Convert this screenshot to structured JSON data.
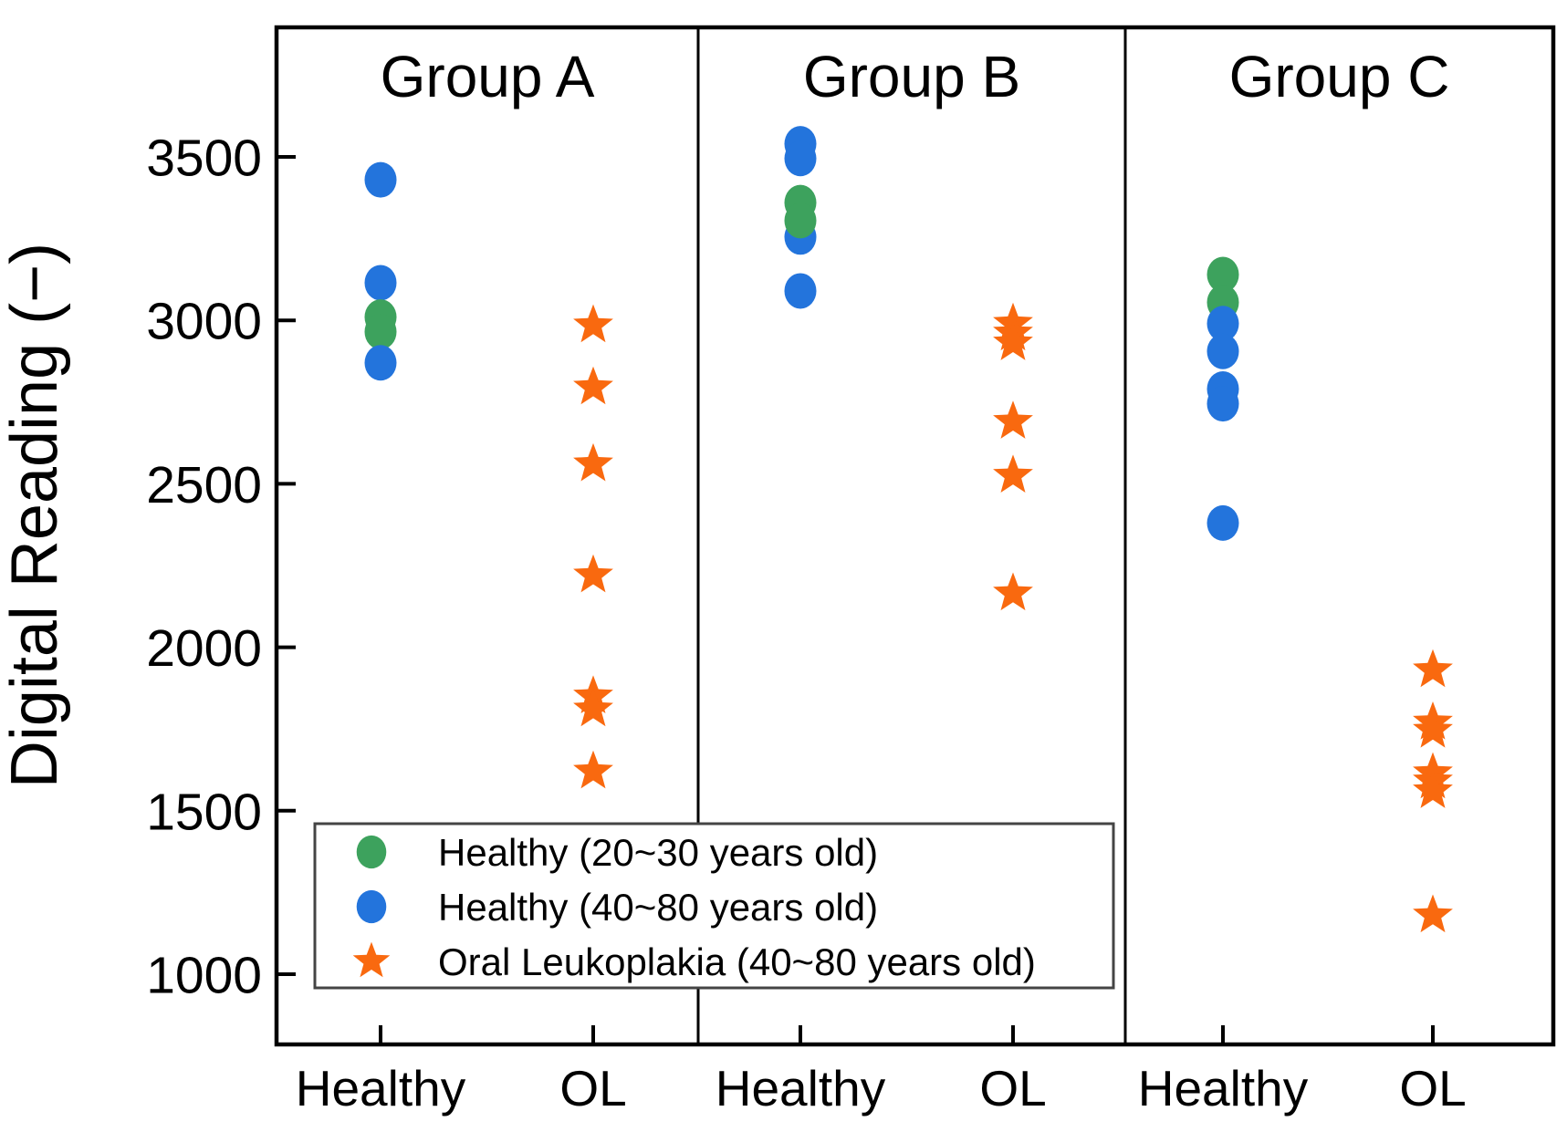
{
  "colors": {
    "healthy_20_30": "#3da25d",
    "healthy_40_80": "#2374dc",
    "ol_40_80": "#f9690f",
    "axis": "#000000",
    "legend_border": "#444444",
    "background": "#ffffff"
  },
  "chart_data": {
    "type": "scatter",
    "ylabel": "Digital Reading (−)",
    "xlabel": "",
    "yticks": [
      3500,
      3000,
      2500,
      2000,
      1500,
      1000
    ],
    "ylim": [
      800,
      3900
    ],
    "grid": false,
    "legend_position": "bottom-left-inside",
    "series_defs": [
      {
        "id": "healthy_20_30",
        "label": "Healthy (20~30 years old)",
        "marker": "circle"
      },
      {
        "id": "healthy_40_80",
        "label": "Healthy (40~80 years old)",
        "marker": "circle"
      },
      {
        "id": "ol_40_80",
        "label": "Oral Leukoplakia (40~80 years old)",
        "marker": "star"
      }
    ],
    "panels": [
      {
        "title": "Group A",
        "categories": [
          "Healthy",
          "OL"
        ],
        "points": [
          {
            "series": "healthy_40_80",
            "category": "Healthy",
            "value": 3430
          },
          {
            "series": "healthy_40_80",
            "category": "Healthy",
            "value": 3115
          },
          {
            "series": "healthy_20_30",
            "category": "Healthy",
            "value": 3010
          },
          {
            "series": "healthy_20_30",
            "category": "Healthy",
            "value": 2965
          },
          {
            "series": "healthy_40_80",
            "category": "Healthy",
            "value": 2870
          },
          {
            "series": "ol_40_80",
            "category": "OL",
            "value": 2985
          },
          {
            "series": "ol_40_80",
            "category": "OL",
            "value": 2795
          },
          {
            "series": "ol_40_80",
            "category": "OL",
            "value": 2560
          },
          {
            "series": "ol_40_80",
            "category": "OL",
            "value": 2220
          },
          {
            "series": "ol_40_80",
            "category": "OL",
            "value": 1850
          },
          {
            "series": "ol_40_80",
            "category": "OL",
            "value": 1810
          },
          {
            "series": "ol_40_80",
            "category": "OL",
            "value": 1620
          }
        ]
      },
      {
        "title": "Group B",
        "categories": [
          "Healthy",
          "OL"
        ],
        "points": [
          {
            "series": "healthy_40_80",
            "category": "Healthy",
            "value": 3540
          },
          {
            "series": "healthy_40_80",
            "category": "Healthy",
            "value": 3495
          },
          {
            "series": "healthy_40_80",
            "category": "Healthy",
            "value": 3255
          },
          {
            "series": "healthy_20_30",
            "category": "Healthy",
            "value": 3360
          },
          {
            "series": "healthy_20_30",
            "category": "Healthy",
            "value": 3305
          },
          {
            "series": "healthy_40_80",
            "category": "Healthy",
            "value": 3090
          },
          {
            "series": "ol_40_80",
            "category": "OL",
            "value": 2990
          },
          {
            "series": "ol_40_80",
            "category": "OL",
            "value": 2960
          },
          {
            "series": "ol_40_80",
            "category": "OL",
            "value": 2930
          },
          {
            "series": "ol_40_80",
            "category": "OL",
            "value": 2690
          },
          {
            "series": "ol_40_80",
            "category": "OL",
            "value": 2525
          },
          {
            "series": "ol_40_80",
            "category": "OL",
            "value": 2165
          }
        ]
      },
      {
        "title": "Group C",
        "categories": [
          "Healthy",
          "OL"
        ],
        "points": [
          {
            "series": "healthy_20_30",
            "category": "Healthy",
            "value": 3140
          },
          {
            "series": "healthy_20_30",
            "category": "Healthy",
            "value": 3055
          },
          {
            "series": "healthy_40_80",
            "category": "Healthy",
            "value": 2990
          },
          {
            "series": "healthy_40_80",
            "category": "Healthy",
            "value": 2905
          },
          {
            "series": "healthy_40_80",
            "category": "Healthy",
            "value": 2790
          },
          {
            "series": "healthy_40_80",
            "category": "Healthy",
            "value": 2745
          },
          {
            "series": "healthy_40_80",
            "category": "Healthy",
            "value": 2380
          },
          {
            "series": "ol_40_80",
            "category": "OL",
            "value": 1930
          },
          {
            "series": "ol_40_80",
            "category": "OL",
            "value": 1770
          },
          {
            "series": "ol_40_80",
            "category": "OL",
            "value": 1745
          },
          {
            "series": "ol_40_80",
            "category": "OL",
            "value": 1615
          },
          {
            "series": "ol_40_80",
            "category": "OL",
            "value": 1590
          },
          {
            "series": "ol_40_80",
            "category": "OL",
            "value": 1560
          },
          {
            "series": "ol_40_80",
            "category": "OL",
            "value": 1180
          }
        ]
      }
    ]
  }
}
